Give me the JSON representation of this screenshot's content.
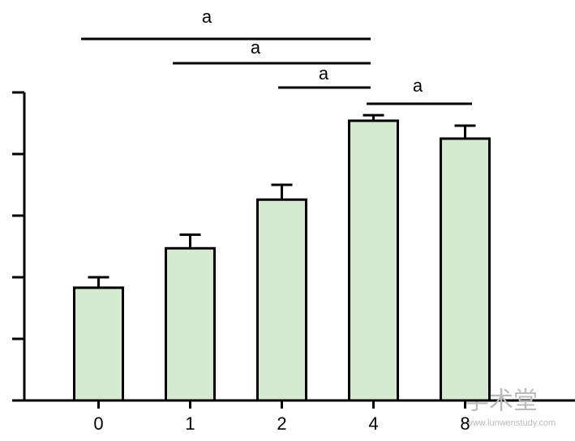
{
  "chart_data": {
    "type": "bar",
    "categories": [
      "0",
      "1",
      "2",
      "4",
      "8"
    ],
    "values": [
      1.83,
      2.47,
      3.26,
      4.54,
      4.25
    ],
    "errors": [
      0.17,
      0.22,
      0.24,
      0.09,
      0.21
    ],
    "color": "#d4ebd0",
    "ylim": [
      0,
      5
    ],
    "yticks": [
      0,
      1,
      2,
      3,
      4,
      5
    ],
    "annotations": [
      {
        "text": "a"
      },
      {
        "text": "a"
      },
      {
        "text": "a"
      },
      {
        "text": "a"
      }
    ],
    "watermark": {
      "title": "学术堂",
      "url": "www.lunwenstudy.com"
    }
  }
}
